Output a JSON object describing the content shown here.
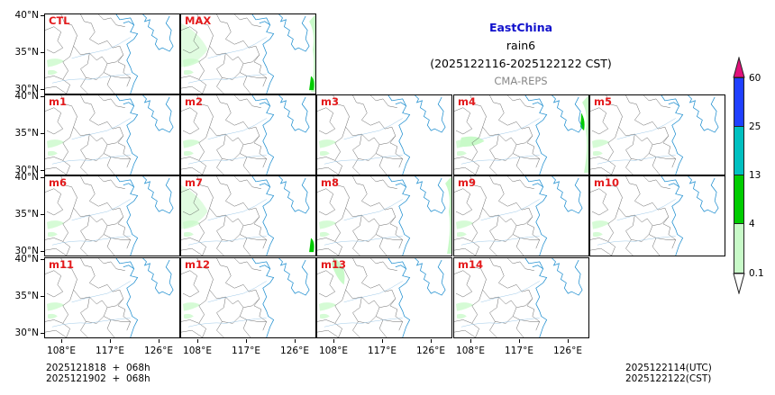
{
  "title": {
    "region": "EastChina",
    "variable": "rain6",
    "period": "(2025122116-2025122122 CST)",
    "model": "CMA-REPS"
  },
  "panels": [
    {
      "label": "CTL",
      "row": 0,
      "col": 0
    },
    {
      "label": "MAX",
      "row": 0,
      "col": 1
    },
    {
      "label": "m1",
      "row": 1,
      "col": 0
    },
    {
      "label": "m2",
      "row": 1,
      "col": 1
    },
    {
      "label": "m3",
      "row": 1,
      "col": 2
    },
    {
      "label": "m4",
      "row": 1,
      "col": 3
    },
    {
      "label": "m5",
      "row": 1,
      "col": 4
    },
    {
      "label": "m6",
      "row": 2,
      "col": 0
    },
    {
      "label": "m7",
      "row": 2,
      "col": 1
    },
    {
      "label": "m8",
      "row": 2,
      "col": 2
    },
    {
      "label": "m9",
      "row": 2,
      "col": 3
    },
    {
      "label": "m10",
      "row": 2,
      "col": 4
    },
    {
      "label": "m11",
      "row": 3,
      "col": 0
    },
    {
      "label": "m12",
      "row": 3,
      "col": 1
    },
    {
      "label": "m13",
      "row": 3,
      "col": 2
    },
    {
      "label": "m14",
      "row": 3,
      "col": 3
    }
  ],
  "axes": {
    "lat_ticks": [
      "40°N",
      "35°N",
      "30°N"
    ],
    "lon_ticks": [
      "108°E",
      "117°E",
      "126°E"
    ]
  },
  "colorbar": {
    "levels": [
      "0.1",
      "4",
      "13",
      "25",
      "60"
    ],
    "colors": [
      "#c8fac8",
      "#00cc00",
      "#00c0c0",
      "#2040ff"
    ],
    "over_color": "#e0107a",
    "under_color": "#ffffff"
  },
  "footer": {
    "init_utc": "2025121818  +  068h",
    "init_cst": "2025121902  +  068h",
    "valid_utc": "2025122114(UTC)",
    "valid_cst": "2025122122(CST)"
  },
  "colors": {
    "coast": "#1f8fd0",
    "border": "#555555",
    "rain_light": "#c8fac8",
    "rain_mod": "#00cc00",
    "label": "#e41a1c"
  }
}
